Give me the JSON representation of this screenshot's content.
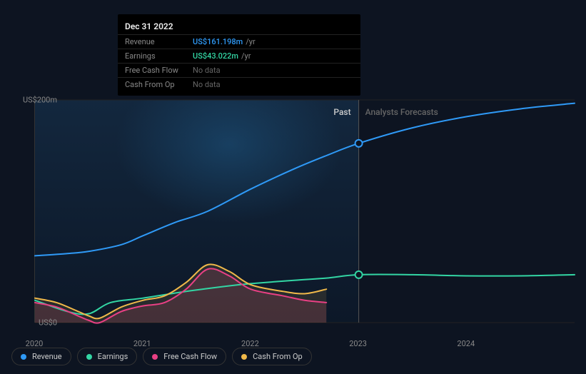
{
  "tooltip": {
    "date": "Dec 31 2022",
    "rows": [
      {
        "label": "Revenue",
        "value": "US$161.198m",
        "unit": "/yr",
        "color": "#2f9af7",
        "hasData": true
      },
      {
        "label": "Earnings",
        "value": "US$43.022m",
        "unit": "/yr",
        "color": "#33d6a4",
        "hasData": true
      },
      {
        "label": "Free Cash Flow",
        "value": "No data",
        "unit": "",
        "color": "#666",
        "hasData": false
      },
      {
        "label": "Cash From Op",
        "value": "No data",
        "unit": "",
        "color": "#666",
        "hasData": false
      }
    ]
  },
  "chart": {
    "type": "line",
    "background_past": "linear-gradient(180deg, rgba(20,50,80,0.6) 0%, rgba(10,25,45,0.5) 100%)",
    "background_forecast": "#0d1421",
    "past_label": "Past",
    "past_label_color": "#cccccc",
    "forecast_label": "Analysts Forecasts",
    "forecast_label_color": "#666666",
    "divider_x": 2023,
    "x_domain": [
      2020,
      2025
    ],
    "y_domain": [
      0,
      200
    ],
    "y_ticks": [
      {
        "value": 0,
        "label": "US$0"
      },
      {
        "value": 200,
        "label": "US$200m"
      }
    ],
    "x_ticks": [
      {
        "value": 2020,
        "label": "2020"
      },
      {
        "value": 2021,
        "label": "2021"
      },
      {
        "value": 2022,
        "label": "2022"
      },
      {
        "value": 2023,
        "label": "2023"
      },
      {
        "value": 2024,
        "label": "2024"
      }
    ],
    "marker_x": 2023,
    "markers": [
      {
        "series": "revenue",
        "y": 161,
        "color": "#2f9af7"
      },
      {
        "series": "earnings",
        "y": 43,
        "color": "#33d6a4"
      }
    ],
    "series": [
      {
        "name": "revenue",
        "label": "Revenue",
        "color": "#2f9af7",
        "width": 2,
        "fill": false,
        "points": [
          [
            2020,
            60
          ],
          [
            2020.3,
            62
          ],
          [
            2020.5,
            64
          ],
          [
            2020.8,
            70
          ],
          [
            2021,
            78
          ],
          [
            2021.3,
            90
          ],
          [
            2021.6,
            100
          ],
          [
            2022,
            120
          ],
          [
            2022.4,
            138
          ],
          [
            2022.7,
            150
          ],
          [
            2023,
            161
          ],
          [
            2023.5,
            175
          ],
          [
            2024,
            185
          ],
          [
            2024.5,
            192
          ],
          [
            2025,
            197
          ]
        ]
      },
      {
        "name": "earnings",
        "label": "Earnings",
        "color": "#33d6a4",
        "width": 2,
        "fill": false,
        "points": [
          [
            2020,
            20
          ],
          [
            2020.3,
            10
          ],
          [
            2020.5,
            8
          ],
          [
            2020.7,
            18
          ],
          [
            2021,
            22
          ],
          [
            2021.4,
            28
          ],
          [
            2021.8,
            33
          ],
          [
            2022,
            35
          ],
          [
            2022.4,
            38
          ],
          [
            2022.7,
            40
          ],
          [
            2023,
            43
          ],
          [
            2023.5,
            43
          ],
          [
            2024,
            42
          ],
          [
            2024.5,
            42
          ],
          [
            2025,
            43
          ]
        ]
      },
      {
        "name": "fcf",
        "label": "Free Cash Flow",
        "color": "#e94084",
        "width": 2,
        "fill": true,
        "fill_opacity": 0.15,
        "points": [
          [
            2020,
            18
          ],
          [
            2020.2,
            14
          ],
          [
            2020.4,
            6
          ],
          [
            2020.5,
            2
          ],
          [
            2020.6,
            0
          ],
          [
            2020.8,
            10
          ],
          [
            2021,
            15
          ],
          [
            2021.2,
            18
          ],
          [
            2021.4,
            30
          ],
          [
            2021.6,
            48
          ],
          [
            2021.8,
            42
          ],
          [
            2022,
            30
          ],
          [
            2022.3,
            24
          ],
          [
            2022.5,
            20
          ],
          [
            2022.7,
            18
          ]
        ]
      },
      {
        "name": "cashop",
        "label": "Cash From Op",
        "color": "#f0b94a",
        "width": 2,
        "fill": true,
        "fill_opacity": 0.12,
        "points": [
          [
            2020,
            22
          ],
          [
            2020.2,
            18
          ],
          [
            2020.4,
            10
          ],
          [
            2020.5,
            6
          ],
          [
            2020.6,
            4
          ],
          [
            2020.8,
            14
          ],
          [
            2021,
            20
          ],
          [
            2021.2,
            24
          ],
          [
            2021.4,
            36
          ],
          [
            2021.6,
            52
          ],
          [
            2021.8,
            46
          ],
          [
            2022,
            34
          ],
          [
            2022.3,
            28
          ],
          [
            2022.5,
            26
          ],
          [
            2022.7,
            30
          ]
        ]
      }
    ],
    "vertical_guide_color": "#555",
    "grid_color": "#222222",
    "axis_color": "#333333",
    "label_fontsize": 11,
    "label_color": "#888888"
  },
  "legend": [
    {
      "label": "Revenue",
      "color": "#2f9af7"
    },
    {
      "label": "Earnings",
      "color": "#33d6a4"
    },
    {
      "label": "Free Cash Flow",
      "color": "#e94084"
    },
    {
      "label": "Cash From Op",
      "color": "#f0b94a"
    }
  ]
}
